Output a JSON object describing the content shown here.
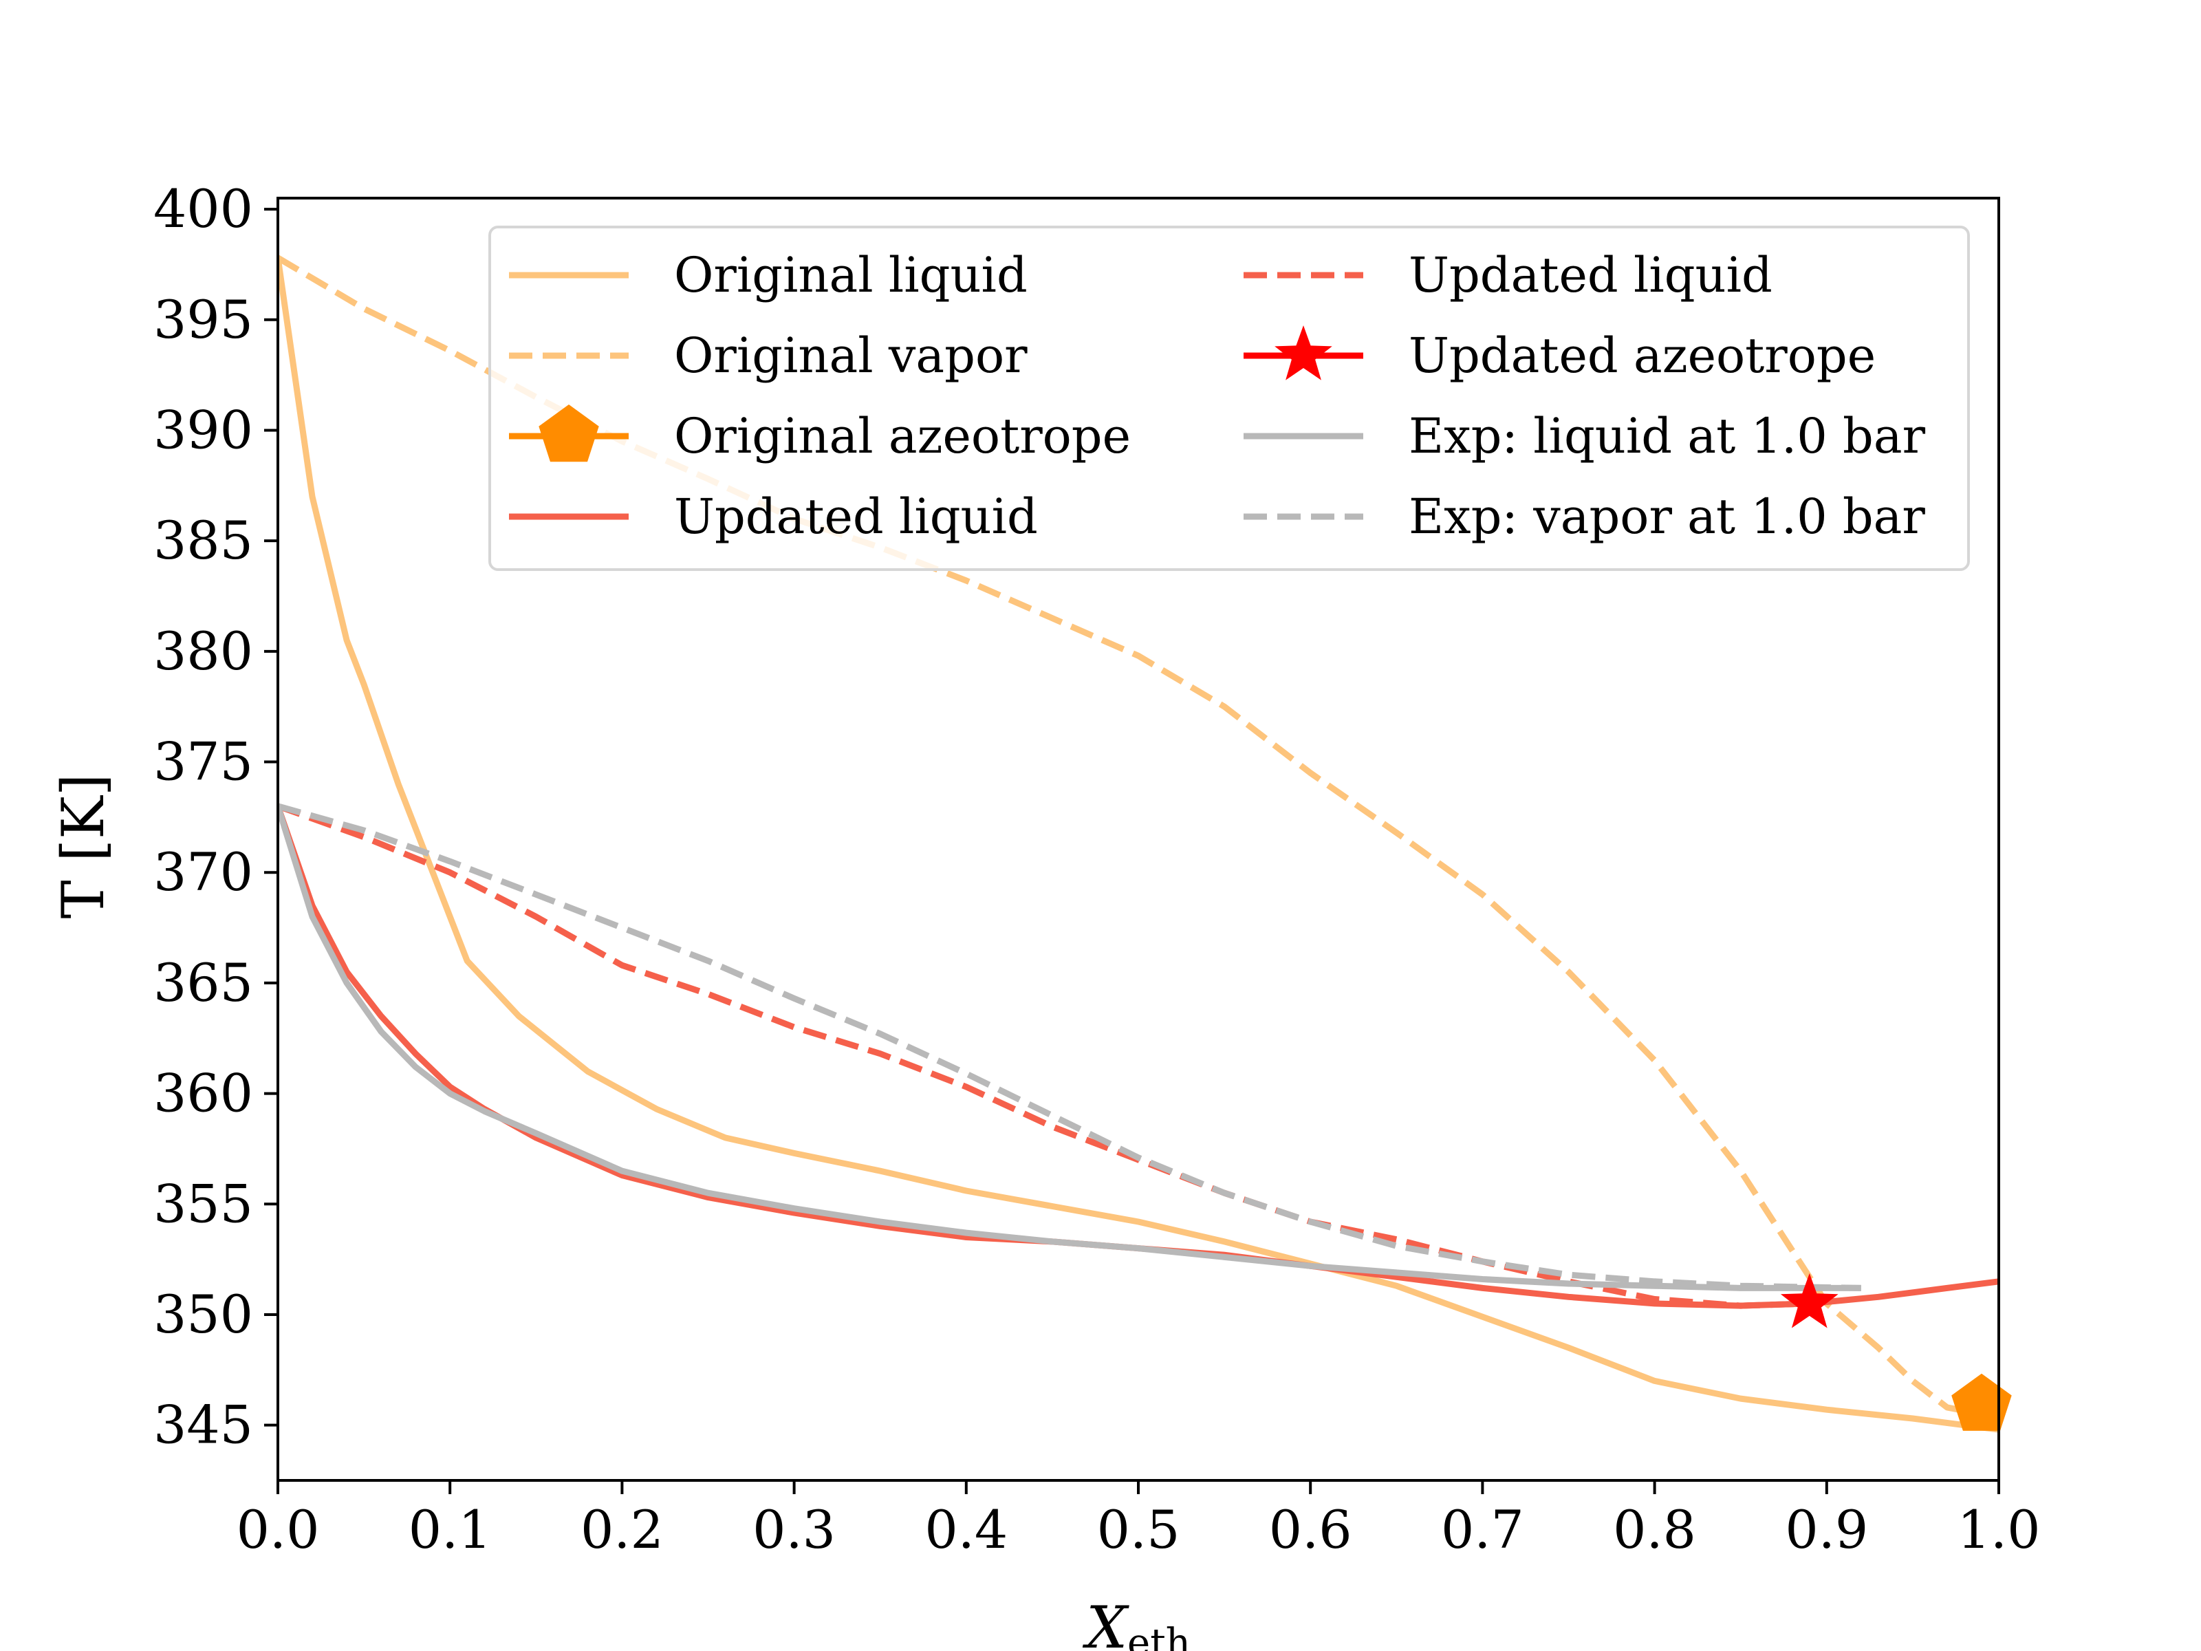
{
  "chart_data": {
    "type": "line",
    "title": "",
    "xlabel": "X",
    "xlabel_sub": "eth",
    "ylabel": "T [K]",
    "xlim": [
      0.0,
      1.0
    ],
    "ylim": [
      342.5,
      400.5
    ],
    "xticks": [
      "0.0",
      "0.1",
      "0.2",
      "0.3",
      "0.4",
      "0.5",
      "0.6",
      "0.7",
      "0.8",
      "0.9",
      "1.0"
    ],
    "yticks": [
      "345",
      "350",
      "355",
      "360",
      "365",
      "370",
      "375",
      "380",
      "385",
      "390",
      "395",
      "400"
    ],
    "grid": false,
    "legend_position": "top-right",
    "colors": {
      "original": "#fdc47c",
      "azeotrope_original": "#ff8c00",
      "updated": "#f5604b",
      "azeotrope_updated": "#ff0000",
      "experimental": "#b8b8b8"
    },
    "series": [
      {
        "name": "Original liquid",
        "color": "#fdc47c",
        "style": "solid",
        "x": [
          0.0,
          0.02,
          0.04,
          0.05,
          0.07,
          0.09,
          0.11,
          0.14,
          0.18,
          0.22,
          0.26,
          0.3,
          0.35,
          0.4,
          0.45,
          0.5,
          0.55,
          0.6,
          0.65,
          0.7,
          0.75,
          0.8,
          0.85,
          0.9,
          0.95,
          1.0
        ],
        "y": [
          397.8,
          387.0,
          380.5,
          378.5,
          374.0,
          370.0,
          366.0,
          363.5,
          361.0,
          359.3,
          358.0,
          357.3,
          356.5,
          355.6,
          354.9,
          354.2,
          353.3,
          352.3,
          351.3,
          349.9,
          348.5,
          347.0,
          346.2,
          345.7,
          345.3,
          344.8
        ]
      },
      {
        "name": "Original vapor",
        "color": "#fdc47c",
        "style": "dashed",
        "x": [
          0.0,
          0.05,
          0.1,
          0.15,
          0.2,
          0.25,
          0.3,
          0.35,
          0.4,
          0.45,
          0.5,
          0.55,
          0.6,
          0.65,
          0.7,
          0.75,
          0.8,
          0.85,
          0.9,
          0.93,
          0.95,
          0.97,
          0.99
        ],
        "y": [
          397.8,
          395.5,
          393.6,
          391.5,
          389.5,
          387.8,
          386.0,
          384.7,
          383.2,
          381.5,
          379.8,
          377.5,
          374.5,
          371.8,
          369.0,
          365.5,
          361.5,
          356.5,
          350.5,
          348.5,
          347.0,
          345.8,
          345.5
        ]
      },
      {
        "name": "Original azeotrope",
        "color": "#ff8c00",
        "marker": "pentagon",
        "x": [
          0.99
        ],
        "y": [
          345.9
        ]
      },
      {
        "name": "Updated liquid",
        "color": "#f5604b",
        "style": "solid",
        "x": [
          0.0,
          0.02,
          0.04,
          0.06,
          0.08,
          0.1,
          0.12,
          0.15,
          0.2,
          0.25,
          0.3,
          0.35,
          0.4,
          0.45,
          0.5,
          0.55,
          0.6,
          0.65,
          0.7,
          0.75,
          0.8,
          0.85,
          0.89,
          0.93,
          0.97,
          1.0
        ],
        "y": [
          373.0,
          368.5,
          365.5,
          363.5,
          361.8,
          360.3,
          359.3,
          358.0,
          356.3,
          355.3,
          354.6,
          354.0,
          353.5,
          353.3,
          353.0,
          352.7,
          352.2,
          351.7,
          351.2,
          350.8,
          350.5,
          350.4,
          350.5,
          350.8,
          351.2,
          351.5
        ]
      },
      {
        "name": "Updated liquid",
        "color": "#f5604b",
        "style": "dashed",
        "x": [
          0.0,
          0.05,
          0.1,
          0.15,
          0.2,
          0.25,
          0.3,
          0.35,
          0.4,
          0.45,
          0.5,
          0.55,
          0.6,
          0.65,
          0.7,
          0.75,
          0.8,
          0.85,
          0.89
        ],
        "y": [
          373.0,
          371.6,
          370.0,
          368.0,
          365.8,
          364.5,
          363.0,
          361.8,
          360.3,
          358.5,
          357.0,
          355.5,
          354.2,
          353.4,
          352.4,
          351.5,
          350.7,
          350.4,
          350.5
        ]
      },
      {
        "name": "Updated azeotrope",
        "color": "#ff0000",
        "marker": "star",
        "x": [
          0.89
        ],
        "y": [
          350.5
        ]
      },
      {
        "name": "Exp: liquid at 1.0 bar",
        "color": "#b8b8b8",
        "style": "solid",
        "x": [
          0.0,
          0.02,
          0.04,
          0.06,
          0.08,
          0.1,
          0.12,
          0.15,
          0.2,
          0.25,
          0.3,
          0.35,
          0.4,
          0.45,
          0.5,
          0.55,
          0.6,
          0.65,
          0.7,
          0.75,
          0.8,
          0.85,
          0.92
        ],
        "y": [
          373.0,
          368.0,
          365.0,
          362.8,
          361.2,
          360.0,
          359.2,
          358.2,
          356.5,
          355.5,
          354.8,
          354.2,
          353.7,
          353.3,
          353.0,
          352.6,
          352.2,
          351.9,
          351.6,
          351.4,
          351.3,
          351.2,
          351.2
        ]
      },
      {
        "name": "Exp: vapor at 1.0 bar",
        "color": "#b8b8b8",
        "style": "dashed",
        "x": [
          0.0,
          0.05,
          0.1,
          0.15,
          0.2,
          0.25,
          0.3,
          0.35,
          0.4,
          0.45,
          0.5,
          0.55,
          0.6,
          0.65,
          0.7,
          0.75,
          0.8,
          0.85,
          0.92
        ],
        "y": [
          373.0,
          371.9,
          370.5,
          369.0,
          367.5,
          366.0,
          364.3,
          362.7,
          360.9,
          359.0,
          357.1,
          355.5,
          354.2,
          353.1,
          352.4,
          351.8,
          351.5,
          351.3,
          351.2
        ]
      }
    ]
  }
}
